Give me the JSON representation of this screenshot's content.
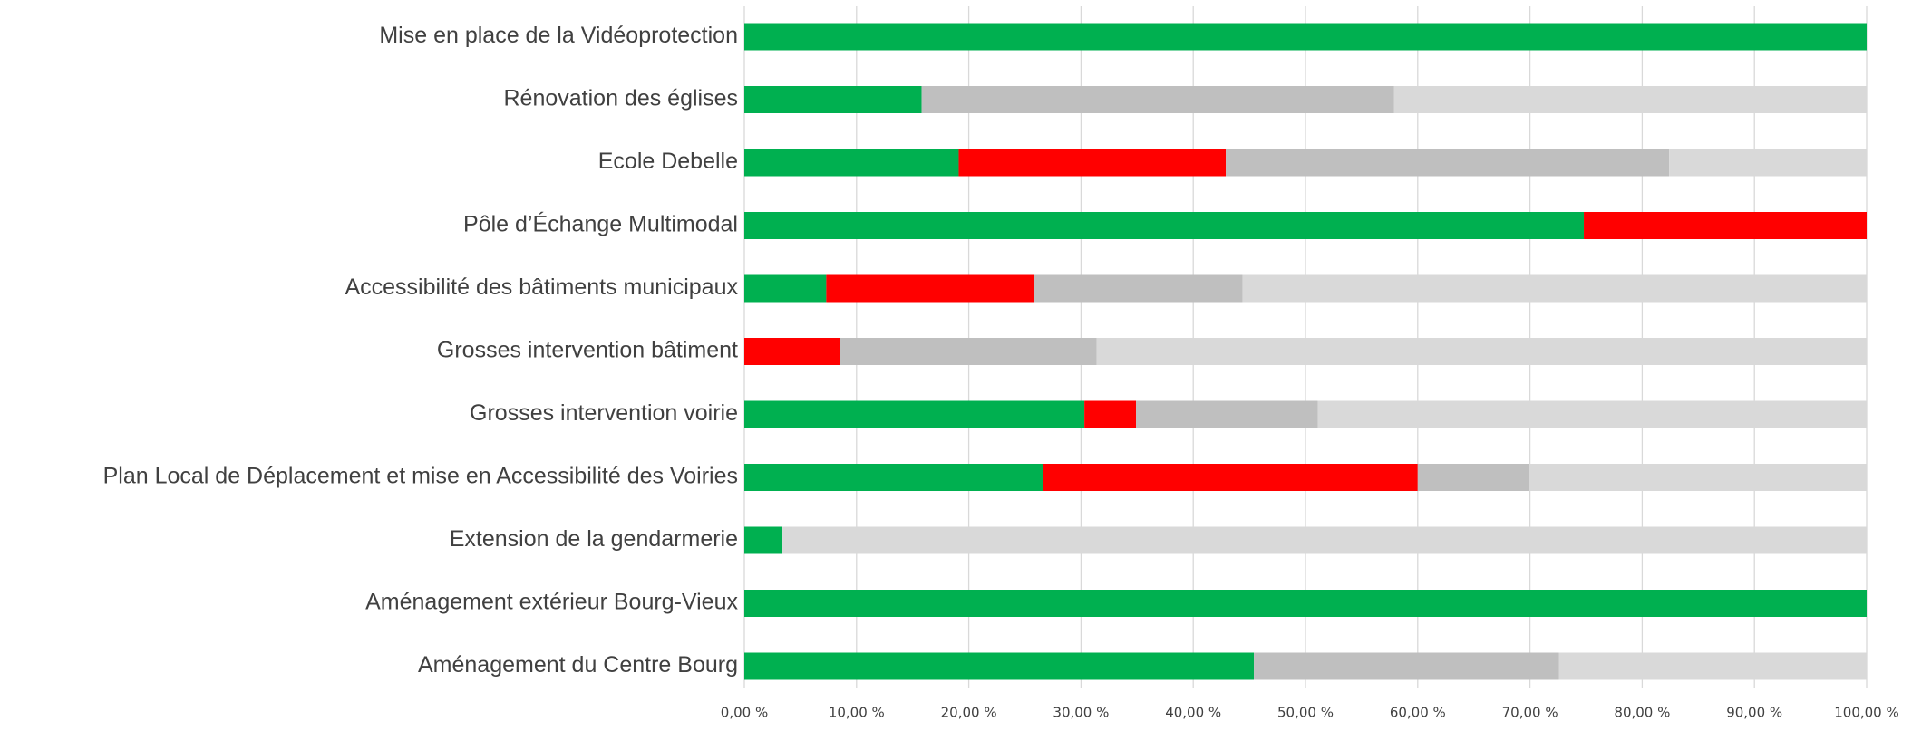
{
  "chart_data": {
    "type": "stacked-barh",
    "categories": [
      "Mise en place de la Vidéoprotection",
      "Rénovation des églises",
      "Ecole Debelle",
      "Pôle d’Échange Multimodal",
      "Accessibilité des bâtiments municipaux",
      "Grosses intervention bâtiment",
      "Grosses intervention voirie",
      "Plan Local de Déplacement et mise en Accessibilité des Voiries",
      "Extension de la gendarmerie",
      "Aménagement extérieur Bourg-Vieux",
      "Aménagement du Centre Bourg"
    ],
    "series": [
      {
        "color": "#00b050",
        "values": [
          100,
          15.8,
          19.1,
          74.8,
          7.3,
          0,
          30.3,
          26.6,
          3.4,
          100,
          45.4
        ]
      },
      {
        "color": "#ff0000",
        "values": [
          0,
          0,
          23.8,
          25.2,
          18.5,
          8.5,
          4.6,
          33.4,
          0,
          0,
          0
        ]
      },
      {
        "color": "#bfbfbf",
        "values": [
          0,
          42.1,
          39.5,
          0,
          18.6,
          22.9,
          16.2,
          9.9,
          0,
          0,
          27.2
        ]
      },
      {
        "color": "#d9d9d9",
        "values": [
          0,
          42.1,
          17.6,
          0,
          55.6,
          68.6,
          48.9,
          30.1,
          96.6,
          0,
          27.4
        ]
      }
    ],
    "xlim": [
      0,
      100
    ],
    "xticks": [
      {
        "value": 0,
        "label": "0,00 %"
      },
      {
        "value": 10,
        "label": "10,00 %"
      },
      {
        "value": 20,
        "label": "20,00 %"
      },
      {
        "value": 30,
        "label": "30,00 %"
      },
      {
        "value": 40,
        "label": "40,00 %"
      },
      {
        "value": 50,
        "label": "50,00 %"
      },
      {
        "value": 60,
        "label": "60,00 %"
      },
      {
        "value": 70,
        "label": "70,00 %"
      },
      {
        "value": 80,
        "label": "80,00 %"
      },
      {
        "value": 90,
        "label": "90,00 %"
      },
      {
        "value": 100,
        "label": "100,00 %"
      }
    ],
    "grid": true
  }
}
